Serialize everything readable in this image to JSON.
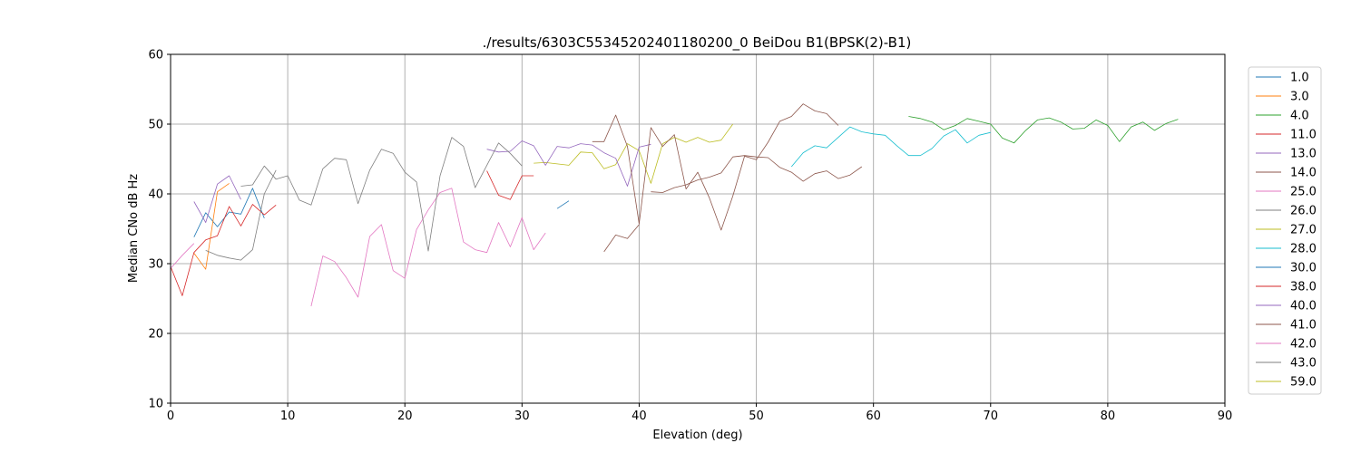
{
  "chart_data": {
    "type": "line",
    "title": "./results/6303C55345202401180200_0 BeiDou B1(BPSK(2)-B1)",
    "xlabel": "Elevation (deg)",
    "ylabel": "Median CNo dB Hz",
    "xlim": [
      0,
      90
    ],
    "ylim": [
      10,
      60
    ],
    "xticks": [
      0,
      10,
      20,
      30,
      40,
      50,
      60,
      70,
      80,
      90
    ],
    "yticks": [
      10,
      20,
      30,
      40,
      50,
      60
    ],
    "grid": true,
    "legend_position": "right",
    "series": [
      {
        "name": "1.0",
        "color": "#1f77b4",
        "x": [
          2,
          3,
          4,
          5,
          6,
          7,
          8
        ],
        "y": [
          33.8,
          37.3,
          35.3,
          37.4,
          37.1,
          40.8,
          36.5
        ]
      },
      {
        "name": "3.0",
        "color": "#ff7f0e",
        "x": [
          2,
          3,
          4,
          5
        ],
        "y": [
          31.5,
          29.2,
          40.3,
          41.5
        ]
      },
      {
        "name": "4.0",
        "color": "#2ca02c",
        "x": [
          63,
          64,
          65,
          66,
          67,
          68,
          69,
          70,
          71,
          72,
          73,
          74,
          75,
          76,
          77,
          78,
          79,
          80,
          81,
          82,
          83,
          84,
          85,
          86
        ],
        "y": [
          51.1,
          50.8,
          50.3,
          49.2,
          49.8,
          50.8,
          50.4,
          50.0,
          48.0,
          47.3,
          49.1,
          50.6,
          50.9,
          50.3,
          49.3,
          49.4,
          50.6,
          49.8,
          47.5,
          49.6,
          50.3,
          49.1,
          50.1,
          50.7
        ]
      },
      {
        "name": "11.0",
        "color": "#d62728",
        "x": [
          0,
          1,
          2,
          3,
          4,
          5,
          6,
          7,
          8,
          9
        ],
        "y": [
          29.6,
          25.4,
          31.6,
          33.4,
          34.0,
          38.2,
          35.4,
          38.5,
          37.0,
          38.4
        ]
      },
      {
        "name": "13.0",
        "color": "#9467bd",
        "x": [
          2,
          3,
          4,
          5,
          6
        ],
        "y": [
          38.9,
          35.9,
          41.4,
          42.6,
          39.2
        ]
      },
      {
        "name": "14.0",
        "color": "#8c564b",
        "x": [
          41,
          42,
          43,
          44,
          45,
          46,
          47,
          48,
          49,
          50,
          51,
          52,
          53,
          54,
          55,
          56,
          57,
          58,
          59
        ],
        "y": [
          40.3,
          40.2,
          40.9,
          41.3,
          42.0,
          42.4,
          43.0,
          45.3,
          45.5,
          45.3,
          45.2,
          43.8,
          43.1,
          41.8,
          42.9,
          43.3,
          42.2,
          42.7,
          43.9
        ]
      },
      {
        "name": "25.0",
        "color": "#e377c2",
        "x": [
          0,
          1,
          2
        ],
        "y": [
          29.3,
          31.2,
          32.9
        ]
      },
      {
        "name": "26.0",
        "color": "#7f7f7f",
        "x": [
          3,
          4,
          5,
          6,
          7,
          8,
          9
        ],
        "y": [
          31.9,
          31.2,
          30.8,
          30.5,
          32.0,
          40.0,
          43.4
        ]
      },
      {
        "name": "27.0",
        "color": "#bcbd22",
        "x": [
          31,
          32,
          33,
          34,
          35,
          36,
          37,
          38,
          39,
          40,
          41,
          42,
          43,
          44,
          45,
          46,
          47,
          48
        ],
        "y": [
          44.4,
          44.5,
          44.3,
          44.1,
          46.0,
          45.9,
          43.6,
          44.2,
          47.2,
          46.2,
          41.5,
          47.2,
          48.1,
          47.4,
          48.1,
          47.4,
          47.7,
          50.0
        ]
      },
      {
        "name": "28.0",
        "color": "#17becf",
        "x": [
          53,
          54,
          55,
          56,
          57,
          58,
          59,
          60,
          61,
          62,
          63,
          64,
          65,
          66,
          67,
          68,
          69,
          70
        ],
        "y": [
          43.9,
          45.9,
          46.9,
          46.6,
          48.1,
          49.6,
          48.9,
          48.6,
          48.4,
          46.9,
          45.5,
          45.5,
          46.5,
          48.3,
          49.2,
          47.3,
          48.4,
          48.8
        ]
      },
      {
        "name": "30.0",
        "color": "#1f77b4",
        "x": [
          33,
          34
        ],
        "y": [
          37.9,
          39.0
        ]
      },
      {
        "name": "38.0",
        "color": "#d62728",
        "x": [
          27,
          28,
          29,
          30,
          31
        ],
        "y": [
          43.3,
          39.8,
          39.2,
          42.6,
          42.6
        ]
      },
      {
        "name": "40.0",
        "color": "#9467bd",
        "x": [
          27,
          28,
          29,
          30,
          31,
          32,
          33,
          34,
          35,
          36,
          37,
          38,
          39,
          40,
          41
        ],
        "y": [
          46.4,
          46.0,
          46.1,
          47.6,
          46.9,
          44.1,
          46.8,
          46.6,
          47.2,
          47.0,
          45.9,
          45.1,
          41.1,
          46.7,
          47.1
        ]
      },
      {
        "name": "41.0",
        "color": "#8c564b",
        "x": [
          36,
          37,
          38,
          39,
          40,
          41,
          42,
          43,
          44,
          45,
          46,
          47,
          48,
          49,
          50,
          51,
          52,
          53,
          54,
          55,
          56,
          57
        ],
        "y": [
          47.5,
          47.5,
          51.3,
          46.8,
          35.7,
          49.5,
          46.8,
          48.5,
          40.7,
          43.1,
          39.4,
          34.8,
          39.7,
          45.4,
          44.9,
          47.4,
          50.4,
          51.1,
          52.9,
          51.9,
          51.5,
          49.8
        ]
      },
      {
        "name": "42.0",
        "color": "#e377c2",
        "x": [
          12,
          13,
          14,
          15,
          16,
          17,
          18,
          19,
          20,
          21,
          22,
          23,
          24,
          25,
          26,
          27,
          28,
          29,
          30,
          31,
          32
        ],
        "y": [
          23.9,
          31.1,
          30.3,
          28.0,
          25.2,
          33.9,
          35.6,
          29.0,
          27.9,
          34.9,
          37.7,
          40.2,
          40.8,
          33.1,
          32.0,
          31.6,
          35.9,
          32.4,
          36.6,
          32.0,
          34.4
        ]
      },
      {
        "name": "43.0",
        "color": "#7f7f7f",
        "x": [
          6,
          7,
          8,
          9,
          10,
          11,
          12,
          13,
          14,
          15,
          16,
          17,
          18,
          19,
          20,
          21,
          22,
          23,
          24,
          25,
          26,
          27,
          28,
          29,
          30
        ],
        "y": [
          41.1,
          41.3,
          44.0,
          42.1,
          42.6,
          39.1,
          38.4,
          43.6,
          45.1,
          44.9,
          38.6,
          43.4,
          46.4,
          45.8,
          43.1,
          41.7,
          31.8,
          42.6,
          48.1,
          46.8,
          40.9,
          44.1,
          47.3,
          45.8,
          44.0
        ]
      },
      {
        "name": "59.0",
        "color": "#bcbd22",
        "x": [],
        "y": []
      },
      {
        "name": "",
        "color": "#8c564b",
        "x": [
          37,
          38,
          39,
          40
        ],
        "y": [
          31.7,
          34.1,
          33.6,
          35.6
        ]
      }
    ]
  }
}
